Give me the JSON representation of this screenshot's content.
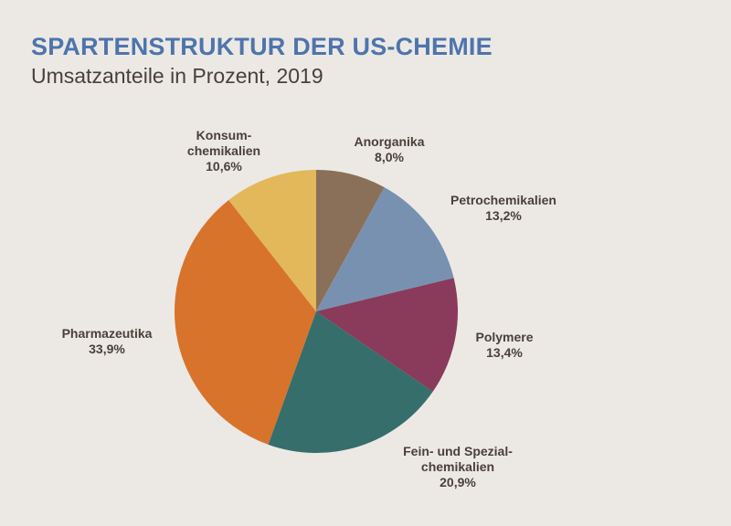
{
  "header": {
    "title": "SPARTENSTRUKTUR DER US-CHEMIE",
    "subtitle": "Umsatzanteile in Prozent, 2019"
  },
  "chart_data": {
    "type": "pie",
    "title": "SPARTENSTRUKTUR DER US-CHEMIE",
    "subtitle": "Umsatzanteile in Prozent, 2019",
    "start": "12 o'clock",
    "direction": "clockwise",
    "slices": [
      {
        "label_lines": [
          "Anorganika"
        ],
        "value": 8.0,
        "value_label": "8,0%",
        "color": "#8a7058"
      },
      {
        "label_lines": [
          "Petrochemikalien"
        ],
        "value": 13.2,
        "value_label": "13,2%",
        "color": "#7891b0"
      },
      {
        "label_lines": [
          "Polymere"
        ],
        "value": 13.4,
        "value_label": "13,4%",
        "color": "#8a3a5a"
      },
      {
        "label_lines": [
          "Fein- und Spezial-",
          "chemikalien"
        ],
        "value": 20.9,
        "value_label": "20,9%",
        "color": "#366e6c"
      },
      {
        "label_lines": [
          "Pharmazeutika"
        ],
        "value": 33.9,
        "value_label": "33,9%",
        "color": "#d8732c"
      },
      {
        "label_lines": [
          "Konsum-",
          "chemikalien"
        ],
        "value": 10.6,
        "value_label": "10,6%",
        "color": "#e2b85a"
      }
    ]
  }
}
